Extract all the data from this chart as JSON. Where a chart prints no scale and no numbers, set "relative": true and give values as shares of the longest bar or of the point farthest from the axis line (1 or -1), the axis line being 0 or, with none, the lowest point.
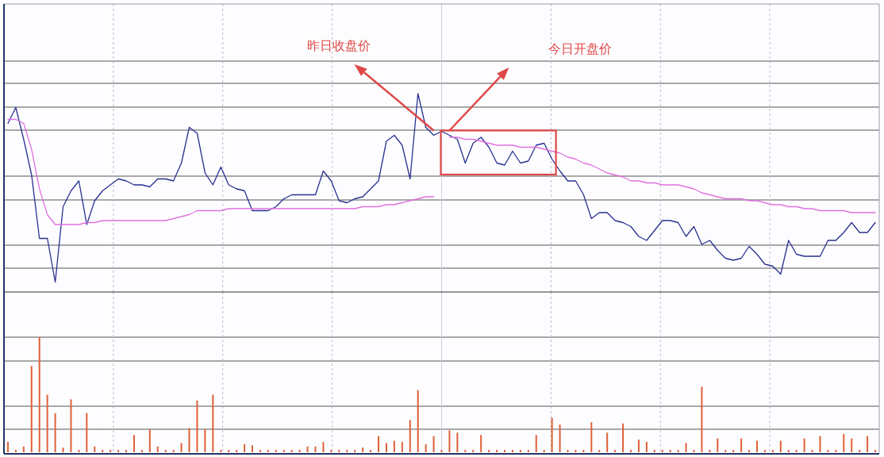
{
  "chart_data": [
    {
      "type": "line",
      "relative": true,
      "grid": true,
      "categories": [
        null,
        null,
        null,
        null,
        null,
        null,
        null,
        null,
        null,
        null,
        null,
        null,
        null,
        null,
        null,
        null,
        null,
        null,
        null,
        null,
        null,
        null,
        null,
        null,
        null,
        null,
        null,
        null,
        null,
        null,
        null,
        null,
        null,
        null,
        null,
        null,
        null,
        null,
        null,
        null,
        null,
        null,
        null,
        null,
        null,
        null,
        null,
        null,
        null,
        null,
        null,
        null,
        null,
        null,
        null,
        null,
        null,
        null,
        null,
        null,
        null,
        null,
        null,
        null,
        null,
        null,
        null,
        null,
        null,
        null,
        null,
        null,
        null,
        null,
        null,
        null,
        null,
        null,
        null,
        null,
        null,
        null,
        null,
        null,
        null,
        null,
        null,
        null,
        null,
        null,
        null,
        null,
        null,
        null,
        null,
        null,
        null,
        null,
        null,
        null,
        null,
        null,
        null,
        null,
        null,
        null,
        null,
        null,
        null,
        null,
        null
      ],
      "series": [
        {
          "color": "#27308f",
          "values": [
            0.85,
            0.93,
            0.77,
            0.59,
            0.27,
            0.27,
            0.05,
            0.43,
            0.51,
            0.56,
            0.34,
            0.46,
            0.51,
            0.54,
            0.57,
            0.56,
            0.54,
            0.54,
            0.53,
            0.57,
            0.57,
            0.56,
            0.65,
            0.83,
            0.8,
            0.6,
            0.54,
            0.63,
            0.54,
            0.52,
            0.51,
            0.41,
            0.41,
            0.41,
            0.43,
            0.47,
            0.49,
            0.49,
            0.49,
            0.49,
            0.61,
            0.56,
            0.46,
            0.45,
            0.47,
            0.48,
            0.52,
            0.56,
            0.76,
            0.79,
            0.74,
            0.57,
            1.0,
            0.83,
            0.79,
            0.81,
            0.79,
            0.77,
            0.65,
            0.75,
            0.78,
            0.73,
            0.65,
            0.64,
            0.71,
            0.65,
            0.66,
            0.74,
            0.75,
            0.67,
            0.61,
            0.56,
            0.56,
            0.49,
            0.37,
            0.4,
            0.4,
            0.36,
            0.35,
            0.33,
            0.28,
            0.26,
            0.31,
            0.36,
            0.36,
            0.35,
            0.28,
            0.33,
            0.24,
            0.26,
            0.21,
            0.17,
            0.16,
            0.17,
            0.23,
            0.19,
            0.14,
            0.13,
            0.09,
            0.26,
            0.19,
            0.18,
            0.18,
            0.18,
            0.26,
            0.26,
            0.3,
            0.35,
            0.3,
            0.3,
            0.35
          ]
        },
        {
          "color": "#e070e0",
          "values": [
            0.87,
            0.87,
            0.85,
            0.72,
            0.52,
            0.39,
            0.34,
            0.34,
            0.34,
            0.34,
            0.35,
            0.35,
            0.36,
            0.36,
            0.36,
            0.36,
            0.36,
            0.36,
            0.36,
            0.36,
            0.36,
            0.37,
            0.38,
            0.39,
            0.41,
            0.41,
            0.41,
            0.41,
            0.42,
            0.42,
            0.42,
            0.42,
            0.42,
            0.42,
            0.42,
            0.42,
            0.42,
            0.42,
            0.42,
            0.42,
            0.42,
            0.42,
            0.42,
            0.42,
            0.42,
            0.43,
            0.43,
            0.43,
            0.44,
            0.44,
            0.45,
            0.46,
            0.47,
            0.48,
            0.48,
            null,
            0.78,
            0.78,
            0.77,
            0.77,
            0.76,
            0.75,
            0.74,
            0.74,
            0.74,
            0.73,
            0.73,
            0.73,
            0.72,
            0.71,
            0.7,
            0.68,
            0.67,
            0.65,
            0.64,
            0.62,
            0.6,
            0.59,
            0.58,
            0.56,
            0.56,
            0.55,
            0.55,
            0.54,
            0.54,
            0.54,
            0.53,
            0.52,
            0.5,
            0.49,
            0.48,
            0.47,
            0.47,
            0.47,
            0.46,
            0.46,
            0.45,
            0.44,
            0.44,
            0.43,
            0.43,
            0.42,
            0.42,
            0.41,
            0.41,
            0.41,
            0.41,
            0.4,
            0.4,
            0.4,
            0.4
          ]
        }
      ],
      "annotations": [
        "昨日收盘价",
        "今日开盘价"
      ]
    },
    {
      "type": "bar",
      "relative": true,
      "grid": true,
      "color": "#e0603a",
      "categories": [
        null,
        null,
        null,
        null,
        null,
        null,
        null,
        null,
        null,
        null,
        null,
        null,
        null,
        null,
        null,
        null,
        null,
        null,
        null,
        null,
        null,
        null,
        null,
        null,
        null,
        null,
        null,
        null,
        null,
        null,
        null,
        null,
        null,
        null,
        null,
        null,
        null,
        null,
        null,
        null,
        null,
        null,
        null,
        null,
        null,
        null,
        null,
        null,
        null,
        null,
        null,
        null,
        null,
        null,
        null,
        null,
        null,
        null,
        null,
        null,
        null,
        null,
        null,
        null,
        null,
        null,
        null,
        null,
        null,
        null,
        null,
        null,
        null,
        null,
        null,
        null,
        null,
        null,
        null,
        null,
        null,
        null,
        null,
        null,
        null,
        null,
        null,
        null,
        null,
        null,
        null,
        null,
        null,
        null,
        null,
        null,
        null,
        null,
        null,
        null,
        null,
        null,
        null,
        null,
        null,
        null,
        null,
        null,
        null,
        null,
        null
      ],
      "values": [
        0.09,
        0.02,
        0.05,
        0.75,
        1.0,
        0.5,
        0.34,
        0.04,
        0.46,
        0.02,
        0.34,
        0.05,
        0.02,
        0.02,
        0.02,
        0.02,
        0.15,
        0.02,
        0.2,
        0.05,
        0.02,
        0.02,
        0.08,
        0.21,
        0.45,
        0.2,
        0.5,
        0.02,
        0.02,
        0.02,
        0.07,
        0.06,
        0.02,
        0.02,
        0.02,
        0.02,
        0.02,
        0.02,
        0.05,
        0.05,
        0.09,
        0.02,
        0.02,
        0.02,
        0.02,
        0.04,
        0.02,
        0.14,
        0.08,
        0.1,
        0.09,
        0.28,
        0.54,
        0.07,
        0.14,
        0.02,
        0.19,
        0.17,
        0.02,
        0.02,
        0.15,
        0.02,
        0.02,
        0.02,
        0.02,
        0.02,
        0.02,
        0.15,
        0.02,
        0.3,
        0.24,
        0.02,
        0.02,
        0.02,
        0.26,
        0.02,
        0.17,
        0.02,
        0.25,
        0.02,
        0.11,
        0.09,
        0.02,
        0.02,
        0.02,
        0.02,
        0.08,
        0.02,
        0.57,
        0.02,
        0.12,
        0.02,
        0.02,
        0.12,
        0.02,
        0.1,
        0.02,
        0.02,
        0.1,
        0.02,
        0.02,
        0.12,
        0.02,
        0.14,
        0.02,
        0.02,
        0.16,
        0.12,
        0.02,
        0.14,
        0.02
      ]
    }
  ]
}
